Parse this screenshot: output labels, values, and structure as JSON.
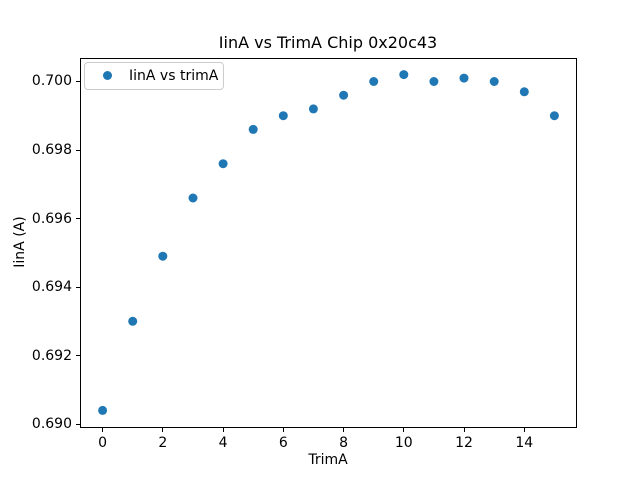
{
  "chart_data": {
    "type": "scatter",
    "title": "IinA vs TrimA Chip 0x20c43",
    "xlabel": "TrimA",
    "ylabel": "IinA (A)",
    "legend": [
      "IinA vs trimA"
    ],
    "legend_position": "upper left",
    "grid": false,
    "background_color": "#ffffff",
    "marker_color": "#1f77b4",
    "marker_shape": "circle",
    "x": [
      0,
      1,
      2,
      3,
      4,
      5,
      6,
      7,
      8,
      9,
      10,
      11,
      12,
      13,
      14,
      15
    ],
    "y": [
      0.6904,
      0.693,
      0.6949,
      0.6966,
      0.6976,
      0.6986,
      0.699,
      0.6992,
      0.6996,
      0.7,
      0.7002,
      0.7,
      0.7001,
      0.7,
      0.6997,
      0.699
    ],
    "xlim": [
      -0.75,
      15.75
    ],
    "ylim": [
      0.6899,
      0.7007
    ],
    "xticks": [
      0,
      2,
      4,
      6,
      8,
      10,
      12,
      14
    ],
    "xtick_labels": [
      "0",
      "2",
      "4",
      "6",
      "8",
      "10",
      "12",
      "14"
    ],
    "yticks": [
      0.69,
      0.692,
      0.694,
      0.696,
      0.698,
      0.7
    ],
    "ytick_labels": [
      "0.690",
      "0.692",
      "0.694",
      "0.696",
      "0.698",
      "0.700"
    ]
  }
}
